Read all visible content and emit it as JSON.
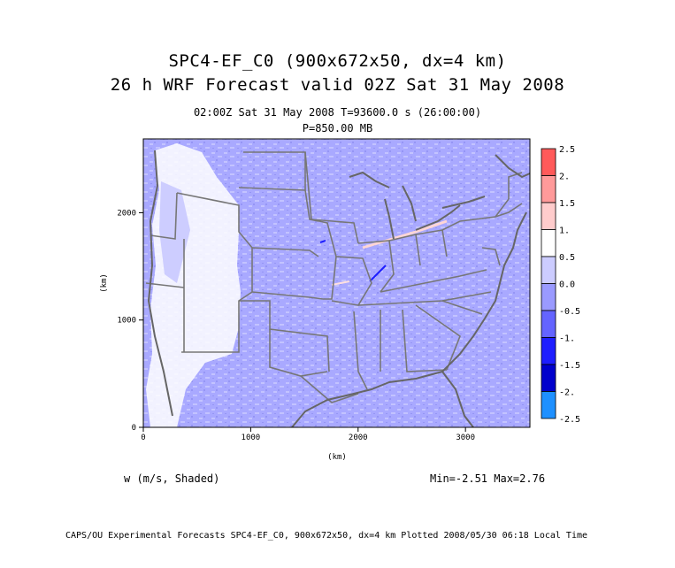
{
  "header": {
    "title_line1": "SPC4-EF_C0 (900x672x50, dx=4 km)",
    "title_line2": "26 h WRF Forecast valid 02Z Sat 31 May 2008",
    "time_line": "02:00Z Sat 31 May 2008    T=93600.0 s (26:00:00)",
    "level_line": "P=850.00 MB"
  },
  "plot": {
    "xlabel": "(km)",
    "ylabel": "(km)",
    "xlim": [
      0,
      3600
    ],
    "ylim": [
      0,
      2688
    ],
    "x_ticks": [
      "0",
      "1000",
      "2000",
      "3000"
    ],
    "y_ticks": [
      "0",
      "1000",
      "2000"
    ]
  },
  "colorbar": {
    "levels": [
      "2.5",
      "2.",
      "1.5",
      "1.",
      "0.5",
      "0.0",
      "-0.5",
      "-1.",
      "-1.5",
      "-2.",
      "-2.5"
    ],
    "colors": [
      "#ff5a5a",
      "#ff9a9a",
      "#ffcccc",
      "#ffffff",
      "#ccccff",
      "#9a9aff",
      "#6464ff",
      "#1e1eff",
      "#0000cc",
      "#1e90ff",
      "#00ffff"
    ]
  },
  "annotations": {
    "field_label": "w (m/s, Shaded)",
    "minmax": "Min=-2.51  Max=2.76",
    "footer": "CAPS/OU Experimental Forecasts  SPC4-EF_C0, 900x672x50, dx=4 km  Plotted 2008/05/30 06:18 Local Time"
  }
}
